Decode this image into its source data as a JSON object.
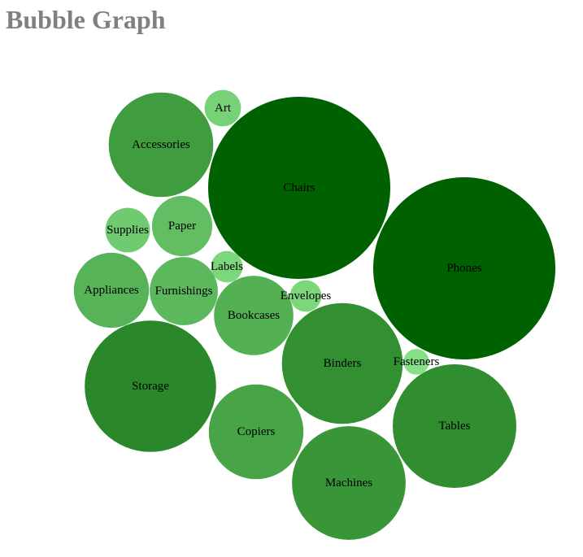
{
  "title": "Bubble Graph",
  "chart_data": {
    "type": "bubble",
    "title": "Bubble Graph",
    "legend": "none",
    "color_scale": {
      "low": "#87e087",
      "high": "#006100"
    },
    "items": [
      {
        "name": "Phones",
        "value": 100
      },
      {
        "name": "Chairs",
        "value": 100
      },
      {
        "name": "Storage",
        "value": 52
      },
      {
        "name": "Tables",
        "value": 46
      },
      {
        "name": "Machines",
        "value": 39
      },
      {
        "name": "Binders",
        "value": 44
      },
      {
        "name": "Copiers",
        "value": 27
      },
      {
        "name": "Accessories",
        "value": 33
      },
      {
        "name": "Bookcases",
        "value": 19
      },
      {
        "name": "Appliances",
        "value": 17
      },
      {
        "name": "Furnishings",
        "value": 14
      },
      {
        "name": "Paper",
        "value": 11
      },
      {
        "name": "Supplies",
        "value": 6
      },
      {
        "name": "Art",
        "value": 4
      },
      {
        "name": "Labels",
        "value": 3
      },
      {
        "name": "Envelopes",
        "value": 3
      },
      {
        "name": "Fasteners",
        "value": 2
      }
    ]
  }
}
